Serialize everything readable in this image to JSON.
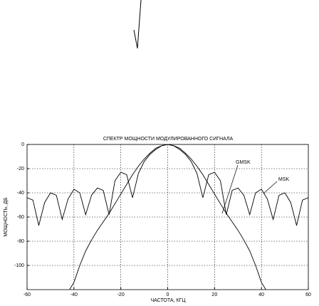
{
  "chart_data": {
    "type": "line",
    "title": "СПЕКТР МОЩНОСТИ МОДУЛИРОВАННОГО СИГНАЛА",
    "x_label": "ЧАСТОТА, КГЦ",
    "y_label": "МОЩНОСТЬ, ДБ",
    "x": [
      -60,
      -57.5,
      -55,
      -52.5,
      -50,
      -47.5,
      -45,
      -42.5,
      -40,
      -37.5,
      -35,
      -32.5,
      -30,
      -27.5,
      -25,
      -22.5,
      -20,
      -17.5,
      -15,
      -12.5,
      -10,
      -7.5,
      -5,
      -2.5,
      0,
      2.5,
      5,
      7.5,
      10,
      12.5,
      15,
      17.5,
      20,
      22.5,
      25,
      27.5,
      30,
      32.5,
      35,
      37.5,
      40,
      42.5,
      45,
      47.5,
      50,
      52.5,
      55,
      57.5,
      60
    ],
    "series": [
      {
        "name": "MSK",
        "color": "#000000",
        "values": [
          -44,
          -46,
          -67,
          -48,
          -40,
          -42,
          -62,
          -45,
          -37,
          -40,
          -58,
          -42,
          -36,
          -38,
          -58,
          -30,
          -23,
          -25,
          -44,
          -24,
          -14,
          -8,
          -4,
          -1,
          0,
          -1,
          -4,
          -8,
          -14,
          -24,
          -44,
          -25,
          -23,
          -30,
          -58,
          -38,
          -36,
          -42,
          -58,
          -40,
          -37,
          -45,
          -62,
          -42,
          -40,
          -48,
          -67,
          -46,
          -44
        ]
      },
      {
        "name": "GMSK",
        "color": "#000000",
        "values": [
          null,
          null,
          null,
          null,
          null,
          null,
          null,
          -122,
          -114,
          -100,
          -88,
          -79,
          -71,
          -64,
          -57,
          -49,
          -41,
          -33,
          -25,
          -18,
          -12,
          -7,
          -3,
          -1,
          0,
          -1,
          -3,
          -7,
          -12,
          -18,
          -25,
          -33,
          -41,
          -49,
          -57,
          -64,
          -71,
          -79,
          -88,
          -100,
          -114,
          -122,
          null,
          null,
          null,
          null,
          null,
          null,
          null
        ]
      }
    ],
    "annotations": [
      "GMSK",
      "MSK"
    ],
    "xlim": [
      -60,
      60
    ],
    "xticks": [
      -60,
      -40,
      -20,
      0,
      20,
      40,
      60
    ],
    "ylim": [
      -120,
      0
    ],
    "yticks": [
      -100,
      -80,
      -60,
      -40,
      -20,
      0
    ],
    "grid": true
  }
}
